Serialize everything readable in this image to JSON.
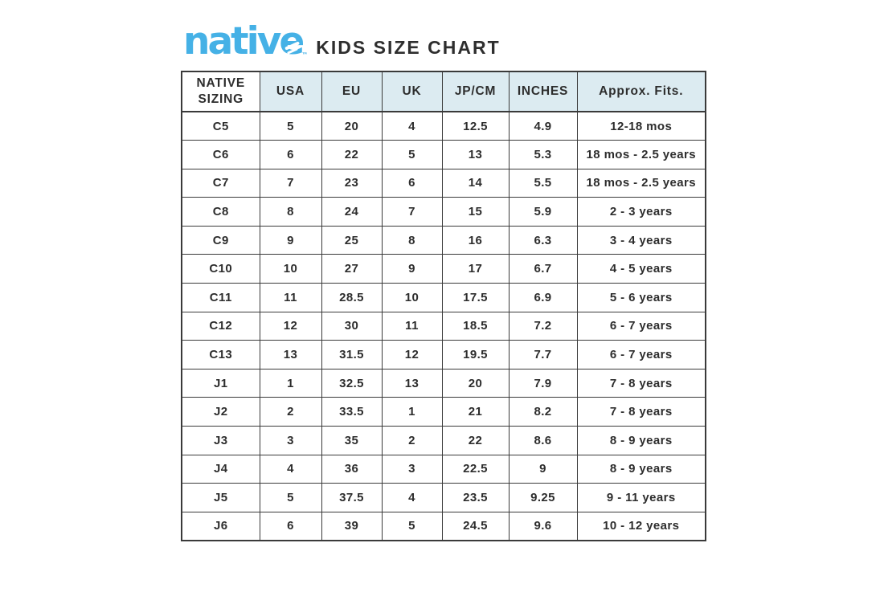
{
  "brand": {
    "logo_text": "native",
    "trademark": "™",
    "title": "KIDS SIZE CHART"
  },
  "style": {
    "accent": "#45b1e6",
    "header_bg": "#dcebf1",
    "border": "#3a3a3a",
    "text": "#2d2d2d"
  },
  "chart_data": {
    "type": "table",
    "title": "KIDS SIZE CHART",
    "columns": [
      "NATIVE SIZING",
      "USA",
      "EU",
      "UK",
      "JP/CM",
      "INCHES",
      "Approx. Fits."
    ],
    "rows": [
      [
        "C5",
        "5",
        "20",
        "4",
        "12.5",
        "4.9",
        "12-18 mos"
      ],
      [
        "C6",
        "6",
        "22",
        "5",
        "13",
        "5.3",
        "18 mos - 2.5 years"
      ],
      [
        "C7",
        "7",
        "23",
        "6",
        "14",
        "5.5",
        "18 mos - 2.5 years"
      ],
      [
        "C8",
        "8",
        "24",
        "7",
        "15",
        "5.9",
        "2 - 3 years"
      ],
      [
        "C9",
        "9",
        "25",
        "8",
        "16",
        "6.3",
        "3 - 4 years"
      ],
      [
        "C10",
        "10",
        "27",
        "9",
        "17",
        "6.7",
        "4 - 5 years"
      ],
      [
        "C11",
        "11",
        "28.5",
        "10",
        "17.5",
        "6.9",
        "5 - 6 years"
      ],
      [
        "C12",
        "12",
        "30",
        "11",
        "18.5",
        "7.2",
        "6 - 7 years"
      ],
      [
        "C13",
        "13",
        "31.5",
        "12",
        "19.5",
        "7.7",
        "6 - 7 years"
      ],
      [
        "J1",
        "1",
        "32.5",
        "13",
        "20",
        "7.9",
        "7 - 8 years"
      ],
      [
        "J2",
        "2",
        "33.5",
        "1",
        "21",
        "8.2",
        "7 - 8 years"
      ],
      [
        "J3",
        "3",
        "35",
        "2",
        "22",
        "8.6",
        "8 - 9 years"
      ],
      [
        "J4",
        "4",
        "36",
        "3",
        "22.5",
        "9",
        "8 - 9 years"
      ],
      [
        "J5",
        "5",
        "37.5",
        "4",
        "23.5",
        "9.25",
        "9 - 11 years"
      ],
      [
        "J6",
        "6",
        "39",
        "5",
        "24.5",
        "9.6",
        "10 - 12 years"
      ]
    ]
  }
}
